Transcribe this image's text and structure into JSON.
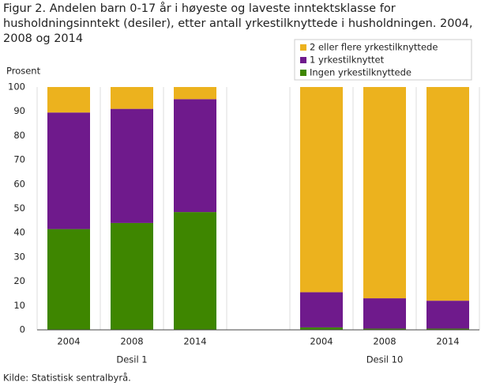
{
  "chart_data": {
    "type": "bar",
    "stacked": true,
    "title": "Figur 2. Andelen barn 0-17 år i høyeste og laveste inntektsklasse for husholdningsinntekt (desiler), etter antall yrkestilknyttede i husholdningen. 2004, 2008 og 2014",
    "y_label": "Prosent",
    "source": "Kilde: Statistisk sentralbyrå.",
    "categories": [
      "2004",
      "2008",
      "2014",
      null,
      "2004",
      "2008",
      "2014"
    ],
    "groups": [
      "Desil 1",
      "Desil 10"
    ],
    "series": [
      {
        "name": "Ingen yrkestilknyttede",
        "color": "#3e8600",
        "values": [
          41.5,
          44,
          48.5,
          null,
          1,
          0.5,
          0.5
        ]
      },
      {
        "name": "1 yrkestilknyttet",
        "color": "#6f1a8c",
        "values": [
          48,
          47,
          46.5,
          null,
          14.5,
          12.5,
          11.5
        ]
      },
      {
        "name": "2 eller flere yrkestilknyttede",
        "color": "#ecb21e",
        "values": [
          10.5,
          9,
          5,
          null,
          84.5,
          87,
          88
        ]
      }
    ],
    "ylim": [
      0,
      100
    ],
    "yticks": [
      0,
      10,
      20,
      30,
      40,
      50,
      60,
      70,
      80,
      90,
      100
    ],
    "legend": "top-right"
  }
}
